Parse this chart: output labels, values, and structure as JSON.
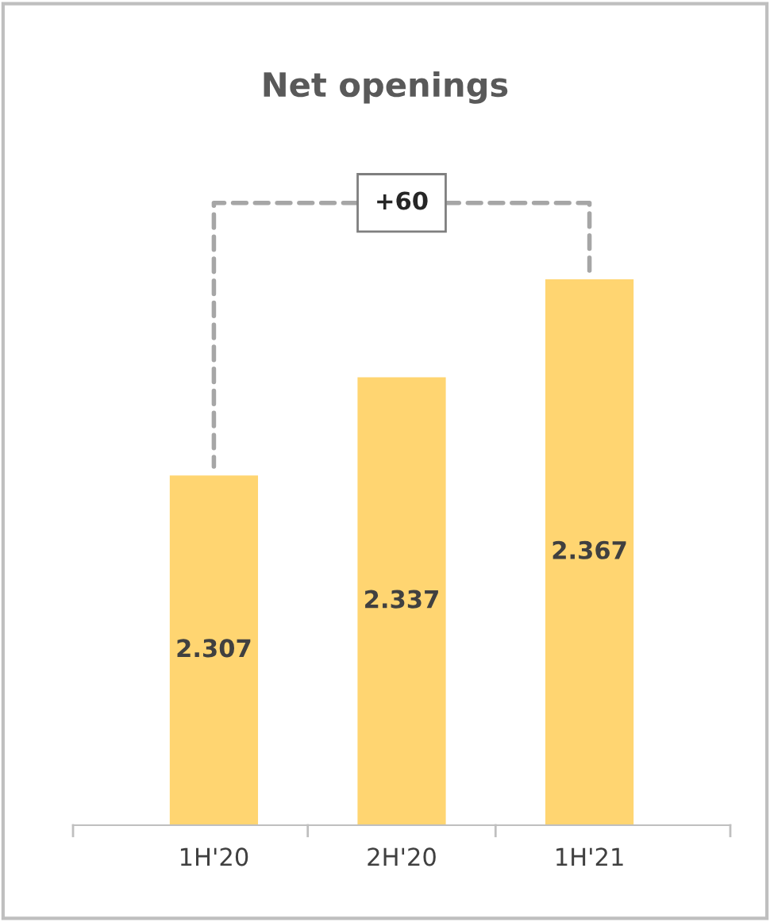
{
  "chart_data": {
    "type": "bar",
    "title": "Net openings",
    "categories": [
      "1H'20",
      "2H'20",
      "1H'21"
    ],
    "values": [
      2.307,
      2.337,
      2.367
    ],
    "color": "#ffd571",
    "ylim": [
      2.2,
      2.367
    ],
    "tick_labels": "x",
    "data_labels": true,
    "annotations": [
      "+60"
    ]
  }
}
